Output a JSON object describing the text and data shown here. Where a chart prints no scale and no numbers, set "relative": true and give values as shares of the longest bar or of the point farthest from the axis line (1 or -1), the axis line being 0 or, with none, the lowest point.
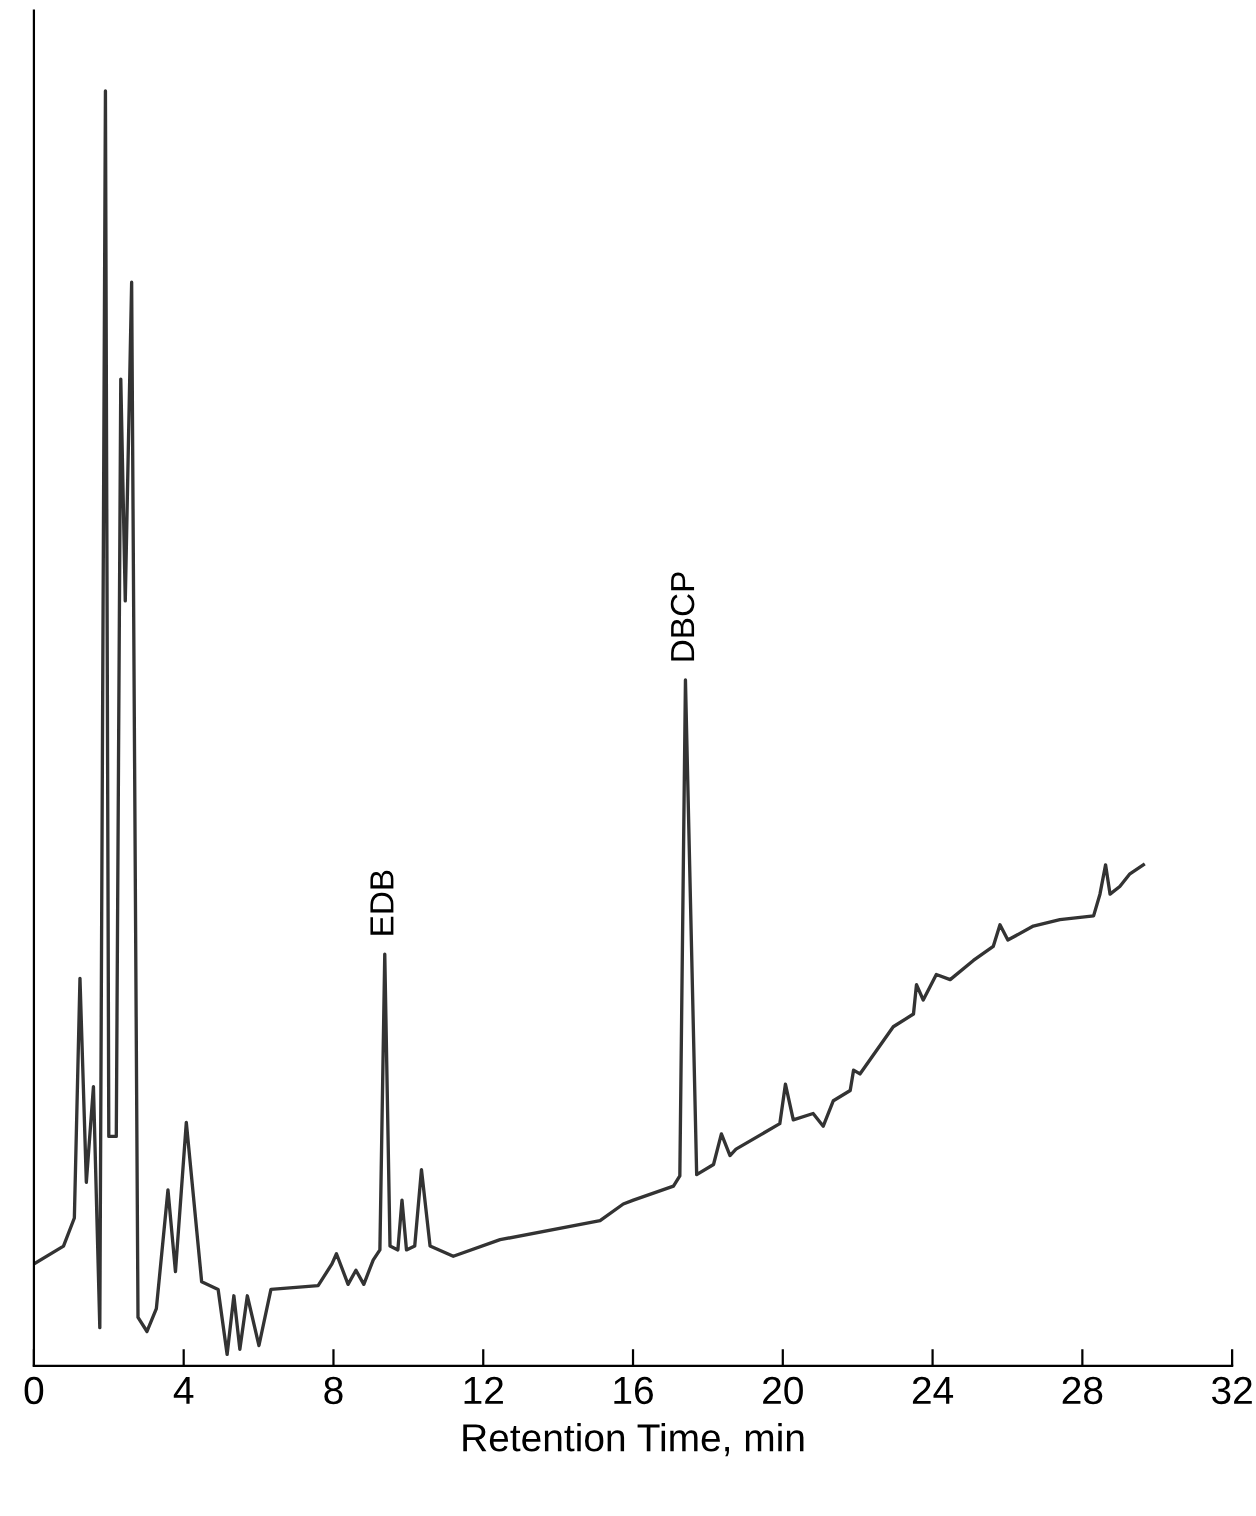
{
  "chart_data": {
    "type": "line",
    "relative": true,
    "xlabel": "Retention Time, min",
    "xlim": [
      0,
      32
    ],
    "xticks": [
      0,
      4,
      8,
      12,
      16,
      20,
      24,
      28,
      32
    ],
    "tick_labels": "x",
    "grid": false,
    "legend": false,
    "marker": "none",
    "line_style": "solid",
    "annotations": [
      {
        "text": "EDB",
        "x": 9.37,
        "y": 0.323
      },
      {
        "text": "DBCP",
        "x": 17.4,
        "y": 0.538
      }
    ],
    "series": [
      {
        "color": "#333333",
        "x": [
          0,
          0.79,
          1.08,
          1.23,
          1.4,
          1.59,
          1.76,
          1.91,
          2.0,
          2.2,
          2.32,
          2.44,
          2.61,
          2.78,
          3.02,
          3.27,
          3.58,
          3.78,
          4.07,
          4.48,
          4.92,
          5.16,
          5.34,
          5.5,
          5.7,
          6.01,
          6.33,
          7.59,
          7.96,
          8.08,
          8.39,
          8.6,
          8.81,
          9.06,
          9.24,
          9.37,
          9.51,
          9.72,
          9.83,
          9.95,
          10.17,
          10.35,
          10.58,
          11.2,
          12.45,
          15.12,
          15.74,
          16.01,
          17.08,
          17.25,
          17.4,
          17.7,
          18.15,
          18.36,
          18.59,
          18.75,
          19.92,
          20.07,
          20.28,
          20.81,
          21.08,
          21.35,
          21.8,
          21.89,
          22.06,
          22.95,
          23.49,
          23.57,
          23.75,
          24.1,
          24.47,
          25.09,
          25.62,
          25.8,
          26.01,
          26.69,
          27.4,
          28.3,
          28.47,
          28.62,
          28.74,
          29.0,
          29.27,
          29.63
        ],
        "values": [
          0.08,
          0.094,
          0.116,
          0.304,
          0.144,
          0.219,
          0.03,
          1.0,
          0.18,
          0.18,
          0.774,
          0.6,
          0.85,
          0.038,
          0.027,
          0.045,
          0.138,
          0.074,
          0.191,
          0.066,
          0.06,
          0.009,
          0.055,
          0.013,
          0.055,
          0.016,
          0.06,
          0.063,
          0.08,
          0.088,
          0.064,
          0.075,
          0.064,
          0.083,
          0.091,
          0.323,
          0.094,
          0.091,
          0.13,
          0.091,
          0.094,
          0.154,
          0.094,
          0.086,
          0.099,
          0.114,
          0.127,
          0.13,
          0.141,
          0.149,
          0.538,
          0.15,
          0.158,
          0.182,
          0.165,
          0.17,
          0.19,
          0.221,
          0.193,
          0.198,
          0.188,
          0.208,
          0.216,
          0.232,
          0.229,
          0.266,
          0.276,
          0.299,
          0.287,
          0.307,
          0.303,
          0.318,
          0.329,
          0.346,
          0.334,
          0.345,
          0.35,
          0.353,
          0.37,
          0.393,
          0.37,
          0.376,
          0.386,
          0.393
        ]
      }
    ]
  }
}
